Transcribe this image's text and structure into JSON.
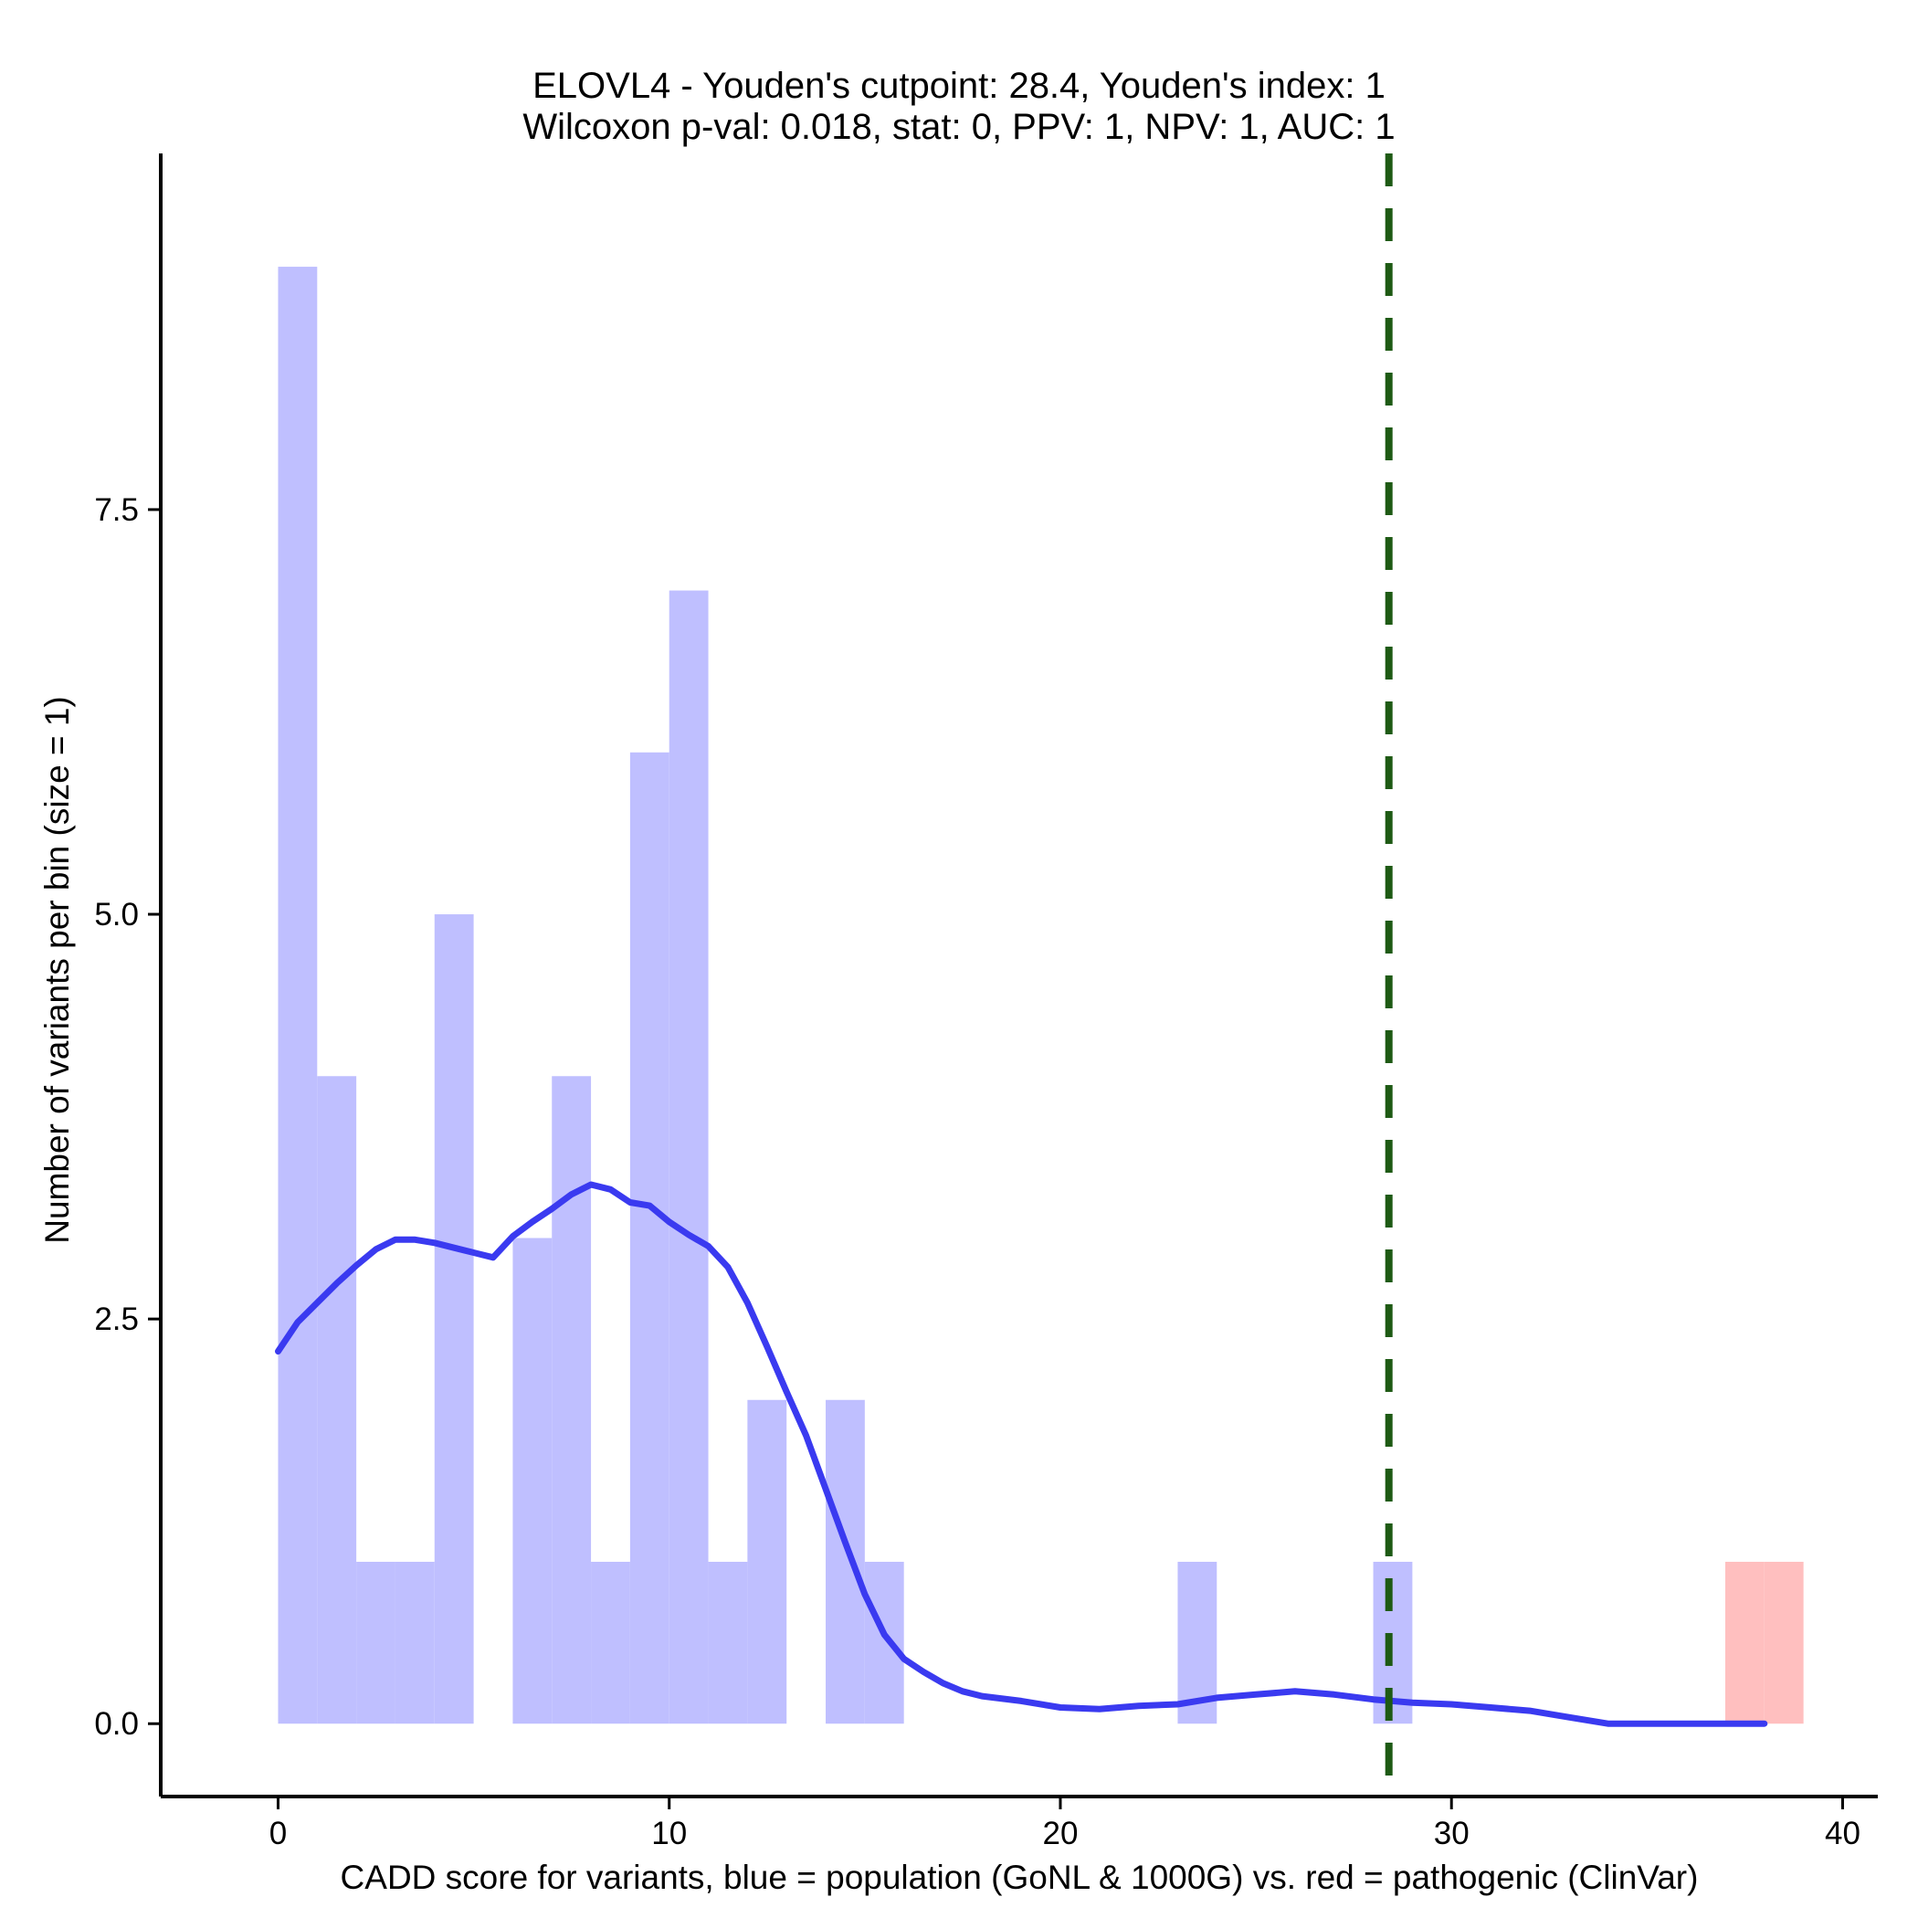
{
  "chart_data": {
    "type": "histogram",
    "title_line1": "ELOVL4 - Youden's cutpoint: 28.4, Youden's index: 1",
    "title_line2": "Wilcoxon p-val: 0.018, stat: 0, PPV: 1, NPV: 1, AUC: 1",
    "xlabel": "CADD score for variants, blue = population (GoNL & 1000G) vs. red = pathogenic (ClinVar)",
    "ylabel": "Number of variants per bin (size = 1)",
    "xlim": [
      -3,
      40.9
    ],
    "ylim": [
      -0.45,
      9.7
    ],
    "x_ticks": [
      {
        "value": 0,
        "label": "0"
      },
      {
        "value": 10,
        "label": "10"
      },
      {
        "value": 20,
        "label": "20"
      },
      {
        "value": 30,
        "label": "30"
      },
      {
        "value": 40,
        "label": "40"
      }
    ],
    "y_ticks": [
      {
        "value": 0,
        "label": "0.0"
      },
      {
        "value": 2.5,
        "label": "2.5"
      },
      {
        "value": 5,
        "label": "5.0"
      },
      {
        "value": 7.5,
        "label": "7.5"
      }
    ],
    "bin_width": 1,
    "series": [
      {
        "name": "population",
        "color": "#BFBFFF",
        "bins": [
          {
            "start": 0,
            "count": 9
          },
          {
            "start": 1,
            "count": 4
          },
          {
            "start": 2,
            "count": 1
          },
          {
            "start": 3,
            "count": 1
          },
          {
            "start": 4,
            "count": 5
          },
          {
            "start": 6,
            "count": 3
          },
          {
            "start": 7,
            "count": 4
          },
          {
            "start": 8,
            "count": 1
          },
          {
            "start": 9,
            "count": 6
          },
          {
            "start": 10,
            "count": 7
          },
          {
            "start": 11,
            "count": 1
          },
          {
            "start": 12,
            "count": 2
          },
          {
            "start": 14,
            "count": 2
          },
          {
            "start": 15,
            "count": 1
          },
          {
            "start": 23,
            "count": 1
          },
          {
            "start": 28,
            "count": 1
          }
        ]
      },
      {
        "name": "pathogenic",
        "color": "#FFBFBF",
        "bins": [
          {
            "start": 37,
            "count": 1
          },
          {
            "start": 38,
            "count": 1
          }
        ]
      }
    ],
    "density_curve": {
      "name": "population density",
      "color": "#3A3AF0",
      "points": [
        [
          0,
          2.3
        ],
        [
          0.5,
          2.48
        ],
        [
          1,
          2.6
        ],
        [
          1.5,
          2.72
        ],
        [
          2,
          2.83
        ],
        [
          2.5,
          2.93
        ],
        [
          3,
          2.99
        ],
        [
          3.5,
          2.99
        ],
        [
          4,
          2.97
        ],
        [
          4.5,
          2.94
        ],
        [
          5,
          2.91
        ],
        [
          5.5,
          2.88
        ],
        [
          6,
          3.01
        ],
        [
          6.5,
          3.1
        ],
        [
          7,
          3.18
        ],
        [
          7.5,
          3.27
        ],
        [
          8,
          3.33
        ],
        [
          8.5,
          3.3
        ],
        [
          9,
          3.22
        ],
        [
          9.5,
          3.2
        ],
        [
          10,
          3.1
        ],
        [
          10.5,
          3.02
        ],
        [
          11,
          2.95
        ],
        [
          11.5,
          2.82
        ],
        [
          12,
          2.6
        ],
        [
          12.5,
          2.33
        ],
        [
          13,
          2.05
        ],
        [
          13.5,
          1.78
        ],
        [
          14,
          1.45
        ],
        [
          14.5,
          1.12
        ],
        [
          15,
          0.8
        ],
        [
          15.5,
          0.55
        ],
        [
          16,
          0.4
        ],
        [
          16.5,
          0.32
        ],
        [
          17,
          0.25
        ],
        [
          17.5,
          0.2
        ],
        [
          18,
          0.17
        ],
        [
          19,
          0.14
        ],
        [
          20,
          0.1
        ],
        [
          21,
          0.09
        ],
        [
          22,
          0.11
        ],
        [
          23,
          0.12
        ],
        [
          24,
          0.16
        ],
        [
          25,
          0.18
        ],
        [
          26,
          0.2
        ],
        [
          27,
          0.18
        ],
        [
          28,
          0.15
        ],
        [
          29,
          0.13
        ],
        [
          30,
          0.12
        ],
        [
          31,
          0.1
        ],
        [
          32,
          0.08
        ],
        [
          33,
          0.04
        ],
        [
          34,
          0
        ],
        [
          36,
          0
        ],
        [
          38,
          0
        ]
      ]
    },
    "reference_line": {
      "name": "Youden's cutpoint",
      "x": 28.4,
      "color": "#1E5A14"
    }
  }
}
